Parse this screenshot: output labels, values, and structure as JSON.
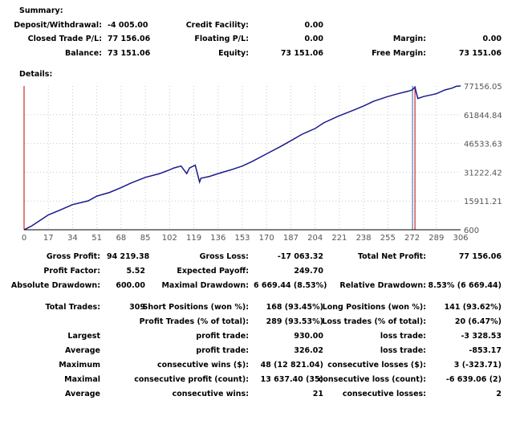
{
  "summary": {
    "title": "Summary:",
    "deposit_label": "Deposit/Withdrawal:",
    "deposit_value": "-4 005.00",
    "credit_label": "Credit Facility:",
    "credit_value": "0.00",
    "closed_label": "Closed Trade P/L:",
    "closed_value": "77 156.06",
    "floating_label": "Floating P/L:",
    "floating_value": "0.00",
    "margin_label": "Margin:",
    "margin_value": "0.00",
    "balance_label": "Balance:",
    "balance_value": "73 151.06",
    "equity_label": "Equity:",
    "equity_value": "73 151.06",
    "free_margin_label": "Free Margin:",
    "free_margin_value": "73 151.06"
  },
  "details": {
    "title": "Details:",
    "gross_profit_label": "Gross Profit:",
    "gross_profit_value": "94 219.38",
    "gross_loss_label": "Gross Loss:",
    "gross_loss_value": "-17 063.32",
    "net_profit_label": "Total Net Profit:",
    "net_profit_value": "77 156.06",
    "profit_factor_label": "Profit Factor:",
    "profit_factor_value": "5.52",
    "expected_payoff_label": "Expected Payoff:",
    "expected_payoff_value": "249.70",
    "abs_dd_label": "Absolute Drawdown:",
    "abs_dd_value": "600.00",
    "max_dd_label": "Maximal Drawdown:",
    "max_dd_value": "6 669.44 (8.53%)",
    "rel_dd_label": "Relative Drawdown:",
    "rel_dd_value": "8.53% (6 669.44)",
    "total_trades_label": "Total Trades:",
    "total_trades_value": "309",
    "short_label": "Short Positions (won %):",
    "short_value": "168 (93.45%)",
    "long_label": "Long Positions (won %):",
    "long_value": "141 (93.62%)",
    "profit_trades_label": "Profit Trades (% of total):",
    "profit_trades_value": "289 (93.53%)",
    "loss_trades_label": "Loss trades (% of total):",
    "loss_trades_value": "20 (6.47%)",
    "largest_label": "Largest",
    "largest_profit_label": "profit trade:",
    "largest_profit_value": "930.00",
    "largest_loss_label": "loss trade:",
    "largest_loss_value": "-3 328.53",
    "average_label": "Average",
    "average_profit_label": "profit trade:",
    "average_profit_value": "326.02",
    "average_loss_label": "loss trade:",
    "average_loss_value": "-853.17",
    "maximum_label": "Maximum",
    "max_cons_wins_label": "consecutive wins ($):",
    "max_cons_wins_value": "48 (12 821.04)",
    "max_cons_losses_label": "consecutive losses ($):",
    "max_cons_losses_value": "3 (-323.71)",
    "maximal_label": "Maximal",
    "maximal_profit_label": "consecutive profit (count):",
    "maximal_profit_value": "13 637.40 (35)",
    "maximal_loss_label": "consecutive loss (count):",
    "maximal_loss_value": "-6 639.06 (2)",
    "avg2_label": "Average",
    "avg_cons_wins_label": "consecutive wins:",
    "avg_cons_wins_value": "21",
    "avg_cons_losses_label": "consecutive losses:",
    "avg_cons_losses_value": "2"
  },
  "chart_data": {
    "type": "line",
    "xlim": [
      0,
      306
    ],
    "ylim": [
      600,
      77156.05
    ],
    "x_ticks": [
      "0",
      "17",
      "34",
      "51",
      "68",
      "85",
      "102",
      "119",
      "136",
      "153",
      "170",
      "187",
      "204",
      "221",
      "238",
      "255",
      "272",
      "289",
      "306"
    ],
    "y_ticks": [
      "77156.05",
      "61844.84",
      "46533.63",
      "31222.42",
      "15911.21",
      "600"
    ],
    "grid": true,
    "line_color": "#1a1a8c",
    "marker_color": "#c00000",
    "markers_x": [
      0,
      274
    ],
    "series": [
      {
        "x": [
          0,
          5,
          10,
          17,
          25,
          34,
          45,
          51,
          60,
          68,
          75,
          85,
          95,
          102,
          105,
          110,
          114,
          116,
          120,
          123,
          124,
          130,
          136,
          145,
          153,
          160,
          170,
          180,
          187,
          195,
          204,
          210,
          220,
          230,
          238,
          245,
          255,
          262,
          270,
          272,
          274,
          276,
          280,
          289,
          295,
          300,
          303,
          306
        ],
        "y": [
          600,
          2500,
          5000,
          8500,
          11000,
          14000,
          16000,
          18500,
          20500,
          23000,
          25500,
          28500,
          30500,
          32500,
          33500,
          34500,
          30500,
          33500,
          35000,
          26000,
          28000,
          29000,
          30500,
          32500,
          34500,
          37000,
          41000,
          45000,
          48000,
          51500,
          54500,
          57500,
          61000,
          64000,
          66500,
          69000,
          71500,
          73000,
          74500,
          75000,
          76500,
          70500,
          71500,
          73000,
          75000,
          76000,
          77000,
          77156
        ]
      }
    ]
  }
}
